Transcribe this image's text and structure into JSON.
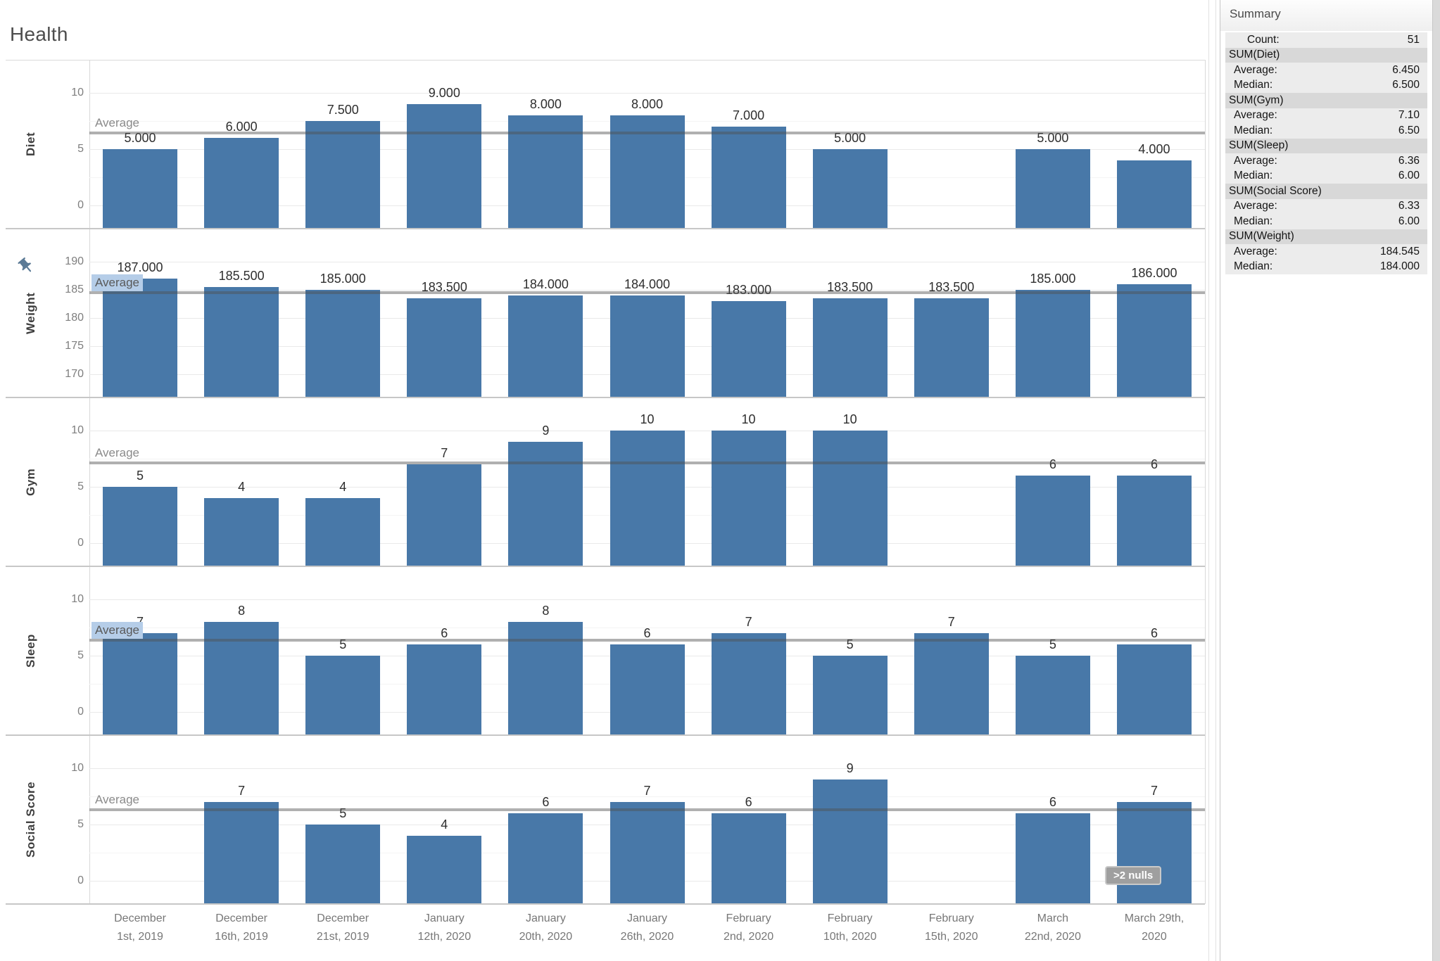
{
  "title": "Health",
  "colors": {
    "bar": "#4878a8",
    "average_line": "rgba(80,80,80,0.45)",
    "average_highlight": "#b5cde8",
    "axis_text": "#7e7e7e",
    "label_text": "#2e2e2e"
  },
  "chart_data": {
    "type": "bar",
    "title": "Health",
    "grid": true,
    "legend_position": "none",
    "categories": [
      "December 1st, 2019",
      "December 16th, 2019",
      "December 21st, 2019",
      "January 12th, 2020",
      "January 20th, 2020",
      "January 26th, 2020",
      "February 2nd, 2020",
      "February 10th, 2020",
      "February 15th, 2020",
      "March 22nd, 2020",
      "March 29th, 2020"
    ],
    "category_labels": [
      "December\n1st, 2019",
      "December\n16th, 2019",
      "December\n21st, 2019",
      "January\n12th, 2020",
      "January\n20th, 2020",
      "January\n26th, 2020",
      "February\n2nd, 2020",
      "February\n10th, 2020",
      "February\n15th, 2020",
      "March\n22nd, 2020",
      "March 29th,\n2020"
    ],
    "panels": [
      {
        "field": "Diet",
        "ticks": [
          "0",
          "5",
          "10"
        ],
        "tick_values": [
          0,
          5,
          10
        ],
        "minor_ticks": [
          2.5,
          7.5
        ],
        "values": [
          5,
          6,
          7.5,
          9,
          8,
          8,
          7,
          5,
          null,
          5,
          4
        ],
        "labels": [
          "5.000",
          "6.000",
          "7.500",
          "9.000",
          "8.000",
          "8.000",
          "7.000",
          "5.000",
          null,
          "5.000",
          "4.000"
        ],
        "average": 6.45,
        "average_label": "Average",
        "average_highlighted": false,
        "pinned": false
      },
      {
        "field": "Weight",
        "ticks": [
          "170",
          "175",
          "180",
          "185",
          "190"
        ],
        "tick_values": [
          170,
          175,
          180,
          185,
          190
        ],
        "minor_ticks": [],
        "values": [
          187,
          185.5,
          185,
          183.5,
          184,
          184,
          183,
          183.5,
          183.5,
          185,
          186
        ],
        "labels": [
          "187.000",
          "185.500",
          "185.000",
          "183.500",
          "184.000",
          "184.000",
          "183.000",
          "183.500",
          "183.500",
          "185.000",
          "186.000"
        ],
        "average": 184.545,
        "average_label": "Average",
        "average_highlighted": true,
        "pinned": true
      },
      {
        "field": "Gym",
        "ticks": [
          "0",
          "5",
          "10"
        ],
        "tick_values": [
          0,
          5,
          10
        ],
        "minor_ticks": [
          2.5,
          7.5
        ],
        "values": [
          5,
          4,
          4,
          7,
          9,
          10,
          10,
          10,
          null,
          6,
          6
        ],
        "labels": [
          "5",
          "4",
          "4",
          "7",
          "9",
          "10",
          "10",
          "10",
          null,
          "6",
          "6"
        ],
        "average": 7.1,
        "average_label": "Average",
        "average_highlighted": false,
        "pinned": false
      },
      {
        "field": "Sleep",
        "ticks": [
          "0",
          "5",
          "10"
        ],
        "tick_values": [
          0,
          5,
          10
        ],
        "minor_ticks": [
          2.5,
          7.5
        ],
        "values": [
          7,
          8,
          5,
          6,
          8,
          6,
          7,
          5,
          7,
          5,
          6
        ],
        "labels": [
          "7",
          "8",
          "5",
          "6",
          "8",
          "6",
          "7",
          "5",
          "7",
          "5",
          "6"
        ],
        "average": 6.36,
        "average_label": "Average",
        "average_highlighted": true,
        "pinned": false
      },
      {
        "field": "Social Score",
        "ticks": [
          "0",
          "5",
          "10"
        ],
        "tick_values": [
          0,
          5,
          10
        ],
        "minor_ticks": [
          2.5,
          7.5
        ],
        "values": [
          null,
          7,
          5,
          4,
          6,
          7,
          6,
          9,
          null,
          6,
          7
        ],
        "labels": [
          null,
          "7",
          "5",
          "4",
          "6",
          "7",
          "6",
          "9",
          null,
          "6",
          "7"
        ],
        "average": 6.33,
        "average_label": "Average",
        "average_highlighted": false,
        "pinned": false,
        "nulls_badge": ">2 nulls"
      }
    ]
  },
  "summary": {
    "title": "Summary",
    "rows": [
      {
        "type": "stat",
        "indent": "lg",
        "label": "Count:",
        "value": "51"
      },
      {
        "type": "header",
        "indent": "",
        "label": "SUM(Diet)",
        "value": ""
      },
      {
        "type": "stat",
        "indent": "md",
        "label": "Average:",
        "value": "6.450"
      },
      {
        "type": "stat",
        "indent": "md",
        "label": "Median:",
        "value": "6.500"
      },
      {
        "type": "header",
        "indent": "",
        "label": "SUM(Gym)",
        "value": ""
      },
      {
        "type": "stat",
        "indent": "md",
        "label": "Average:",
        "value": "7.10"
      },
      {
        "type": "stat",
        "indent": "md",
        "label": "Median:",
        "value": "6.50"
      },
      {
        "type": "header",
        "indent": "",
        "label": "SUM(Sleep)",
        "value": ""
      },
      {
        "type": "stat",
        "indent": "md",
        "label": "Average:",
        "value": "6.36"
      },
      {
        "type": "stat",
        "indent": "md",
        "label": "Median:",
        "value": "6.00"
      },
      {
        "type": "header",
        "indent": "",
        "label": "SUM(Social Score)",
        "value": ""
      },
      {
        "type": "stat",
        "indent": "md",
        "label": "Average:",
        "value": "6.33"
      },
      {
        "type": "stat",
        "indent": "md",
        "label": "Median:",
        "value": "6.00"
      },
      {
        "type": "header",
        "indent": "",
        "label": "SUM(Weight)",
        "value": ""
      },
      {
        "type": "stat",
        "indent": "md",
        "label": "Average:",
        "value": "184.545"
      },
      {
        "type": "stat",
        "indent": "md",
        "label": "Median:",
        "value": "184.000"
      }
    ]
  }
}
